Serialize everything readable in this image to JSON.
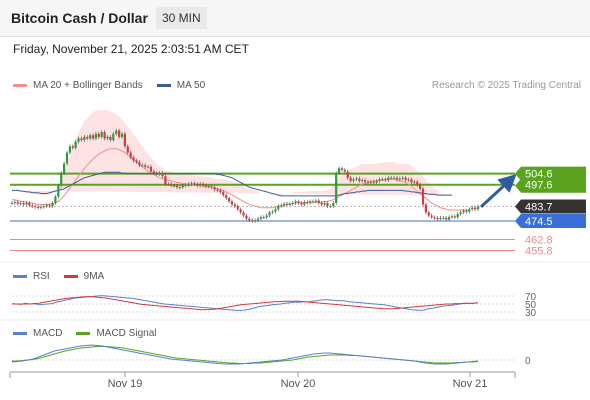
{
  "header": {
    "title": "Bitcoin Cash / Dollar",
    "timeframe": "30 MIN"
  },
  "datetime": "Friday, November 21, 2025 2:03:51 AM CET",
  "legend": {
    "ma20_label": "MA 20 + Bollinger Bands",
    "ma50_label": "MA 50",
    "rsi_label": "RSI",
    "rsi_ma_label": "9MA",
    "macd_label": "MACD",
    "macd_signal_label": "MACD Signal"
  },
  "credit": "Research © 2025 Trading Central",
  "colors": {
    "candle_up": "#2f9a3c",
    "candle_down": "#d23b3b",
    "ma20": "#f08f8f",
    "ma50": "#3b5d9c",
    "bollinger_fill": "#fde3e3",
    "resistance": "#5aa31f",
    "support": "#3a6fd8",
    "target": "#f08a8a",
    "current": "#333333",
    "arrow": "#2e5c9e",
    "rsi": "#5b7fd1",
    "rsi_ma": "#d23b3b",
    "macd": "#5b7fd1",
    "macd_signal": "#5aa31f"
  },
  "chart_data": {
    "type": "candlestick",
    "symbol": "Bitcoin Cash / Dollar",
    "interval": "30 MIN",
    "x_ticks": [
      "Nov 19",
      "Nov 20",
      "Nov 21"
    ],
    "price_ylim": [
      451,
      540
    ],
    "levels": [
      {
        "value": 504.6,
        "label": "504.6",
        "kind": "resistance"
      },
      {
        "value": 497.6,
        "label": "497.6",
        "kind": "resistance"
      },
      {
        "value": 483.7,
        "label": "483.7",
        "kind": "current"
      },
      {
        "value": 474.5,
        "label": "474.5",
        "kind": "support"
      },
      {
        "value": 462.8,
        "label": "462.8",
        "kind": "target"
      },
      {
        "value": 455.8,
        "label": "455.8",
        "kind": "target"
      }
    ],
    "close_series": [
      486,
      486.5,
      485.5,
      486,
      485,
      486,
      484.5,
      484,
      483.5,
      483,
      483.5,
      484,
      484.5,
      484,
      486,
      490,
      497,
      505,
      511,
      518,
      522,
      521,
      525,
      527,
      526,
      528,
      527,
      529,
      527,
      530,
      528,
      531,
      527,
      528,
      526,
      530,
      532,
      528,
      530,
      522,
      518,
      515,
      513,
      512,
      510,
      510,
      509,
      509,
      506,
      505,
      504.5,
      505,
      503,
      498,
      498,
      497,
      497,
      496,
      496,
      497,
      497.5,
      498,
      498.5,
      498,
      497,
      498,
      497,
      496.5,
      496.5,
      496,
      494.5,
      494,
      493,
      491,
      489,
      487,
      485,
      484,
      482,
      480,
      478,
      476,
      475,
      474.5,
      475,
      476,
      477,
      477,
      478,
      480,
      480.5,
      482,
      484,
      484.5,
      485.5,
      485,
      485.5,
      486,
      487,
      486,
      485,
      486.5,
      486,
      487,
      487,
      487.5,
      486,
      485,
      486,
      484,
      484,
      486,
      505,
      508,
      507,
      506,
      502,
      500,
      501,
      501.5,
      500,
      500.5,
      499.5,
      499,
      499.5,
      499,
      500,
      501,
      501,
      500.5,
      502,
      502,
      502,
      501,
      501.5,
      502,
      500.5,
      501,
      499,
      499.5,
      497.5,
      495,
      485,
      480,
      478,
      477,
      476.5,
      476,
      476.5,
      476.5,
      475.5,
      477,
      477.5,
      477,
      479,
      480,
      481,
      480.5,
      482,
      483,
      482,
      483.7
    ],
    "ma20": [
      488,
      488,
      487.5,
      487,
      487,
      486.5,
      486,
      486,
      485.5,
      485,
      485,
      485,
      485,
      485,
      485.5,
      486,
      487,
      488.5,
      490.5,
      493,
      495.5,
      498,
      500.5,
      503,
      505.5,
      508,
      510,
      512,
      514,
      515.5,
      517,
      518,
      519,
      520,
      520.5,
      520.5,
      520.5,
      520,
      519,
      518,
      516.5,
      515,
      513.5,
      512,
      510.5,
      509,
      507.5,
      506,
      505,
      504,
      503,
      502,
      501.5,
      501,
      500.5,
      500,
      499.5,
      499,
      499,
      498.5,
      498,
      498,
      497.5,
      497.5,
      497,
      497,
      497,
      496.5,
      496.5,
      496,
      495.5,
      495,
      494.5,
      494,
      493,
      492,
      491,
      490,
      489,
      488,
      487,
      486,
      485,
      484.5,
      484,
      483.5,
      483,
      483,
      483,
      483,
      483,
      483.5,
      484,
      484,
      484.5,
      485,
      485,
      485.5,
      486,
      486,
      486,
      486,
      486.5,
      486.5,
      486.5,
      486.5,
      486.5,
      486.5,
      487,
      487,
      487.5,
      488,
      489,
      490,
      491,
      492,
      493,
      494,
      495,
      496,
      497,
      498,
      498.5,
      499,
      499.5,
      500,
      500,
      500.5,
      500.5,
      501,
      501,
      501,
      501,
      500.5,
      500,
      499.5,
      499,
      498,
      496.5,
      495,
      493.5,
      492,
      490.5,
      489,
      487.5,
      486,
      485,
      484,
      483,
      482.5,
      482,
      481.5,
      481.5,
      481.5,
      481.5,
      481.5,
      481.5,
      481.5,
      481.5
    ],
    "ma50": [
      494,
      494,
      494,
      493.5,
      493.5,
      493,
      493,
      492.5,
      492.5,
      492.5,
      492,
      492,
      492,
      492.5,
      493,
      493.5,
      494,
      494.5,
      495,
      496,
      497,
      498,
      499,
      500,
      501,
      502,
      502.5,
      503,
      503.5,
      504,
      504.5,
      505,
      505.5,
      505.5,
      505.5,
      505.5,
      505.5,
      505.5,
      505,
      505,
      504.5,
      504.5,
      504.5,
      504.5,
      504.5,
      504.5,
      504.5,
      504.5,
      504.5,
      504.5,
      504.5,
      504.5,
      504.5,
      504.5,
      504.5,
      504.5,
      504.5,
      504.5,
      504.5,
      504.5,
      504.5,
      504.5,
      504.5,
      504.5,
      504.5,
      504.5,
      504.5,
      504.5,
      504.5,
      504.5,
      504.5,
      504,
      504,
      503.5,
      503,
      502.5,
      502,
      501,
      500,
      499,
      498,
      497,
      496,
      495.5,
      495,
      494.5,
      494,
      493.5,
      493,
      492.5,
      492,
      491.5,
      491,
      490.5,
      490.5,
      490.5,
      490.5,
      490.5,
      490.5,
      490.5,
      490.5,
      490.5,
      490.5,
      490.5,
      490.5,
      490.5,
      490.5,
      490.5,
      490.5,
      490.5,
      490.5,
      490.5,
      490.5,
      491,
      491.5,
      492,
      492,
      492.5,
      492.5,
      493,
      493,
      493.5,
      493.5,
      494,
      494,
      494,
      494,
      494,
      494,
      494,
      494,
      494,
      494,
      494,
      494,
      494,
      493.5,
      493.5,
      493,
      493,
      492.5,
      492.5,
      492,
      492,
      491.5,
      491.5,
      491.5,
      491,
      491,
      491,
      491,
      491,
      491
    ],
    "bb_width": [
      6,
      6,
      6,
      6,
      6,
      6,
      6,
      6,
      6,
      6,
      6,
      6,
      6,
      6,
      7,
      8,
      10,
      12,
      15,
      18,
      21,
      24,
      26,
      28,
      29,
      30,
      30,
      30,
      30,
      29,
      28,
      27,
      26,
      25,
      24,
      23,
      22,
      21,
      20,
      19,
      18,
      17,
      16,
      15,
      14,
      13,
      12,
      11,
      10,
      9,
      8,
      7,
      7,
      6,
      6,
      6,
      6,
      6,
      6,
      6,
      6,
      6,
      6,
      6,
      6,
      6,
      6,
      6,
      6,
      6,
      6,
      6,
      7,
      7,
      8,
      8,
      9,
      9,
      10,
      10,
      10,
      10,
      10,
      10,
      10,
      10,
      9,
      9,
      9,
      8,
      8,
      8,
      7,
      7,
      7,
      7,
      7,
      7,
      7,
      7,
      7,
      7,
      7,
      7,
      7,
      7,
      7,
      7,
      7,
      7,
      8,
      9,
      11,
      12,
      13,
      13,
      13,
      13,
      13,
      13,
      13,
      13,
      12,
      12,
      11,
      11,
      11,
      11,
      11,
      11,
      11,
      11,
      11,
      11,
      11,
      11,
      12,
      13,
      13,
      13,
      13,
      13,
      12,
      12,
      11,
      11,
      10,
      10,
      9,
      9,
      9,
      9,
      9,
      9,
      9,
      9,
      9,
      9
    ],
    "rsi": {
      "levels": [
        70,
        50,
        30
      ],
      "ylim": [
        20,
        80
      ],
      "values": [
        51,
        50,
        49,
        52,
        50,
        51,
        48,
        49,
        50,
        51,
        55,
        57,
        60,
        62,
        65,
        66,
        67,
        68,
        69,
        70,
        71,
        70,
        69,
        68,
        67,
        66,
        65,
        64,
        62,
        60,
        58,
        56,
        54,
        52,
        50,
        49,
        48,
        47,
        46,
        45,
        44,
        43,
        42,
        41,
        40,
        39,
        38,
        37,
        36,
        35,
        34,
        34,
        35,
        37,
        40,
        43,
        45,
        46,
        48,
        49,
        50,
        52,
        53,
        55,
        54,
        56,
        55,
        57,
        58,
        60,
        61,
        60,
        59,
        58,
        58,
        56,
        55,
        54,
        53,
        52,
        51,
        50,
        49,
        48,
        46,
        44,
        42,
        40,
        38,
        36,
        35,
        34,
        35,
        38,
        40,
        42,
        44,
        46,
        47,
        48,
        50,
        52,
        51,
        52,
        53
      ],
      "ma": [
        50,
        50,
        50,
        50,
        50,
        51,
        52,
        54,
        56,
        58,
        60,
        62,
        64,
        65,
        66,
        67,
        68,
        68,
        68,
        67,
        66,
        65,
        63,
        61,
        59,
        57,
        55,
        53,
        51,
        49,
        48,
        47,
        46,
        45,
        44,
        43,
        42,
        41,
        40,
        39,
        38,
        37,
        36,
        36,
        36,
        37,
        38,
        40,
        42,
        44,
        46,
        48,
        49,
        50,
        51,
        52,
        53,
        54,
        55,
        56,
        56,
        57,
        57,
        57,
        57,
        56,
        55,
        54,
        53,
        52,
        51,
        50,
        49,
        48,
        47,
        46,
        45,
        44,
        43,
        42,
        41,
        40,
        39,
        38,
        38,
        38,
        39,
        40,
        41,
        42,
        43,
        44,
        45,
        46,
        47,
        48,
        49,
        50,
        50,
        51,
        51,
        52,
        52,
        52,
        53
      ]
    },
    "macd": {
      "zero_label": "0",
      "ylim": [
        -10,
        18
      ],
      "macd": [
        -2,
        -1.5,
        -1,
        0,
        1,
        3,
        5,
        7,
        9,
        10,
        11,
        12,
        13,
        14,
        14.5,
        15,
        14.5,
        14,
        13,
        12,
        11,
        10,
        9,
        8,
        7,
        6,
        5,
        4,
        3,
        2,
        1,
        0.5,
        0,
        -0.5,
        -1,
        -1.5,
        -2,
        -2.5,
        -3,
        -3.5,
        -4,
        -4,
        -4,
        -4,
        -3.5,
        -3,
        -2.5,
        -2,
        -1.5,
        -1,
        -0.5,
        0,
        1,
        2,
        3,
        4,
        5,
        6,
        6.5,
        7,
        7,
        6.5,
        6,
        5.5,
        5,
        4.5,
        4,
        3.5,
        3,
        2.5,
        2,
        1.5,
        1,
        0.5,
        0,
        -0.5,
        -1,
        -2,
        -3,
        -3.5,
        -4,
        -4,
        -4,
        -3.5,
        -3,
        -2.5,
        -2,
        -1.5,
        -1
      ],
      "signal": [
        -1,
        -1,
        -0.5,
        0,
        0.5,
        1.5,
        3,
        4.5,
        6,
        7.5,
        9,
        10,
        11,
        12,
        12.5,
        13,
        13.5,
        13.5,
        13.5,
        13,
        12.5,
        12,
        11,
        10,
        9,
        8,
        7,
        6,
        5,
        4,
        3,
        2,
        1.5,
        1,
        0.5,
        0,
        -0.5,
        -1,
        -1.5,
        -2,
        -2.5,
        -3,
        -3,
        -3.5,
        -3.5,
        -3.5,
        -3,
        -3,
        -2.5,
        -2,
        -1.5,
        -1,
        -0.5,
        0,
        1,
        2,
        3,
        3.5,
        4,
        4.5,
        5,
        5,
        5,
        5,
        4.5,
        4.5,
        4,
        3.5,
        3,
        2.5,
        2,
        1.5,
        1,
        0.5,
        0,
        -0.5,
        -1,
        -1.5,
        -2,
        -2.5,
        -3,
        -3,
        -3,
        -3,
        -2.5,
        -2.5,
        -2,
        -2,
        -1.5
      ]
    }
  }
}
